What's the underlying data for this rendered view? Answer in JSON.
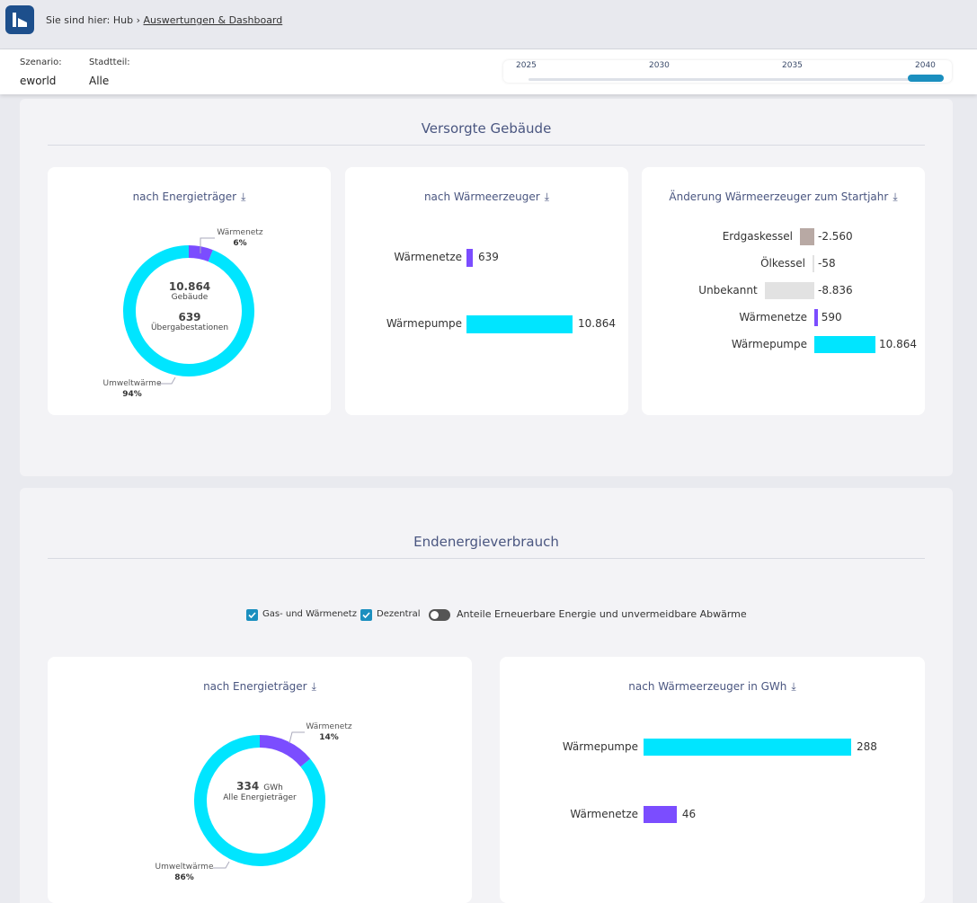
{
  "breadcrumb": {
    "prefix": "Sie sind hier: Hub ›",
    "current": "Auswertungen & Dashboard"
  },
  "filters": {
    "scenario_label": "Szenario:",
    "scenario_value": "eworld",
    "district_label": "Stadtteil:",
    "district_value": "Alle"
  },
  "timeline": {
    "years": [
      "2025",
      "2030",
      "2035",
      "2040"
    ],
    "selected": "2040"
  },
  "colors": {
    "cyan": "#00e5ff",
    "purple": "#7b4dff",
    "taupe": "#b8a9a4",
    "gray": "#e2e2e2",
    "accent": "#1b8fbf"
  },
  "section1": {
    "title": "Versorgte Gebäude",
    "card1": {
      "title": "nach Energieträger",
      "center_value1": "10.864",
      "center_label1": "Gebäude",
      "center_value2": "639",
      "center_label2": "Übergabestationen",
      "slices": [
        {
          "name": "Wärmenetz",
          "percent_label": "6%",
          "fraction": 0.06
        },
        {
          "name": "Umweltwärme",
          "percent_label": "94%",
          "fraction": 0.94
        }
      ]
    },
    "card2": {
      "title": "nach Wärmeerzeuger",
      "bars": [
        {
          "label": "Wärmenetze",
          "value": 639,
          "value_label": "639"
        },
        {
          "label": "Wärmepumpe",
          "value": 10864,
          "value_label": "10.864"
        }
      ]
    },
    "card3": {
      "title": "Änderung Wärmeerzeuger zum Startjahr",
      "bars": [
        {
          "label": "Erdgaskessel",
          "value": -2560,
          "value_label": "-2.560"
        },
        {
          "label": "Ölkessel",
          "value": -58,
          "value_label": "-58"
        },
        {
          "label": "Unbekannt",
          "value": -8836,
          "value_label": "-8.836"
        },
        {
          "label": "Wärmenetze",
          "value": 590,
          "value_label": "590"
        },
        {
          "label": "Wärmepumpe",
          "value": 10864,
          "value_label": "10.864"
        }
      ]
    }
  },
  "section2": {
    "title": "Endenergieverbrauch",
    "legend": {
      "check1": "Gas- und Wärmenetz",
      "check2": "Dezentral",
      "toggle": "Anteile Erneuerbare Energie und unvermeidbare Abwärme"
    },
    "card1": {
      "title": "nach Energieträger",
      "center_value": "334",
      "center_unit": "GWh",
      "center_label": "Alle Energieträger",
      "slices": [
        {
          "name": "Wärmenetz",
          "percent_label": "14%",
          "fraction": 0.14
        },
        {
          "name": "Umweltwärme",
          "percent_label": "86%",
          "fraction": 0.86
        }
      ]
    },
    "card2": {
      "title": "nach Wärmeerzeuger in GWh",
      "bars": [
        {
          "label": "Wärmepumpe",
          "value": 288,
          "value_label": "288"
        },
        {
          "label": "Wärmenetze",
          "value": 46,
          "value_label": "46"
        }
      ]
    }
  }
}
